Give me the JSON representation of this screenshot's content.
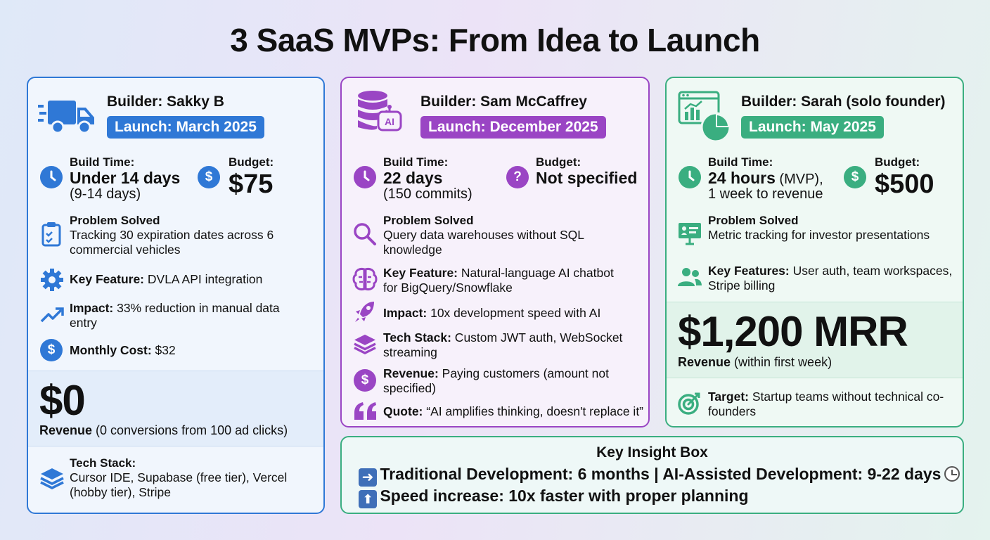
{
  "title": "3 SaaS MVPs: From Idea to Launch",
  "colors": {
    "blue": "#2f78d6",
    "purple": "#9a45c4",
    "green": "#3aae80"
  },
  "cards": [
    {
      "builder": "Builder: Sakky B",
      "launch": "Launch: March 2025",
      "build_label": "Build Time:",
      "build_value": "Under 14 days",
      "build_sub": "(9-14 days)",
      "budget_label": "Budget:",
      "budget_value": "$75",
      "problem_label": "Problem Solved",
      "problem_text": "Tracking 30 expiration dates across 6 commercial vehicles",
      "feature_label": "Key Feature:",
      "feature_text": " DVLA API integration",
      "impact_label": "Impact:",
      "impact_text": " 33% reduction in manual data entry",
      "cost_label": "Monthly Cost:",
      "cost_text": " $32",
      "revenue_value": "$0",
      "revenue_label": "Revenue",
      "revenue_text": " (0 conversions from 100 ad clicks)",
      "stack_label": "Tech Stack:",
      "stack_text": "Cursor IDE, Supabase (free tier), Vercel (hobby tier), Stripe",
      "icons": [
        "truck-icon",
        "clock-icon",
        "dollar-icon",
        "clipboard-icon",
        "gear-icon",
        "trend-up-icon",
        "dollar-icon",
        "layers-icon"
      ]
    },
    {
      "builder": "Builder: Sam McCaffrey",
      "launch": "Launch: December 2025",
      "build_label": "Build Time:",
      "build_value": "22 days",
      "build_sub": "(150 commits)",
      "budget_label": "Budget:",
      "budget_value": "Not specified",
      "problem_label": "Problem Solved",
      "problem_text": "Query data warehouses without SQL knowledge",
      "feature_label": "Key Feature:",
      "feature_text": " Natural-language AI chatbot for BigQuery/Snowflake",
      "impact_label": "Impact:",
      "impact_text": " 10x development speed with AI",
      "stack_label": "Tech Stack:",
      "stack_text": " Custom JWT auth, WebSocket streaming",
      "revenue_label": "Revenue:",
      "revenue_text": " Paying customers (amount not specified)",
      "quote_label": "Quote:",
      "quote_text": " “AI amplifies thinking, doesn't replace it”",
      "ai_badge": "AI",
      "icons": [
        "database-ai-icon",
        "clock-icon",
        "question-icon",
        "search-icon",
        "brain-icon",
        "rocket-icon",
        "layers-icon",
        "dollar-icon",
        "quote-icon"
      ]
    },
    {
      "builder": "Builder: Sarah (solo founder)",
      "launch": "Launch: May 2025",
      "build_label": "Build Time:",
      "build_value": "24 hours",
      "build_value_rest": " (MVP),",
      "build_sub": "1 week to revenue",
      "budget_label": "Budget:",
      "budget_value": "$500",
      "problem_label": "Problem Solved",
      "problem_text": "Metric tracking for investor presentations",
      "feature_label": "Key Features:",
      "feature_text": " User auth, team workspaces, Stripe billing",
      "revenue_value": "$1,200 MRR",
      "revenue_label": "Revenue",
      "revenue_text": " (within first week)",
      "target_label": "Target:",
      "target_text": " Startup teams without technical co-founders",
      "icons": [
        "dashboard-chart-icon",
        "clock-icon",
        "dollar-icon",
        "presentation-icon",
        "users-icon",
        "target-icon"
      ]
    }
  ],
  "insight": {
    "heading": "Key Insight Box",
    "line1": "Traditional Development: 6 months | AI-Assisted Development: 9-22 days",
    "line2": "Speed increase: 10x faster with proper planning",
    "icons": [
      "arrow-right-icon",
      "clock-icon",
      "arrow-up-icon"
    ]
  }
}
